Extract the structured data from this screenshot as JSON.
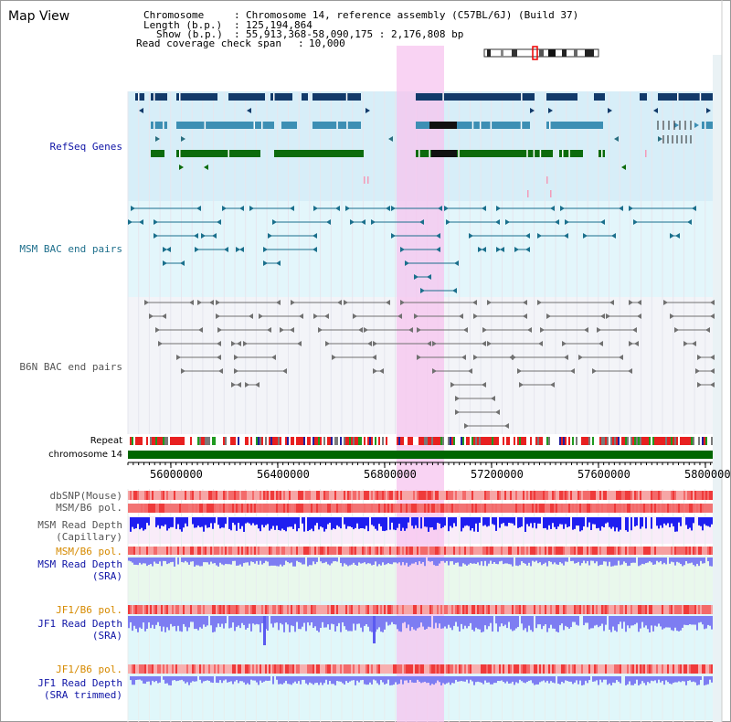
{
  "view_title": "Map View",
  "header": {
    "chromosome_label": "Chromosome",
    "chromosome_value": "Chromosome 14, reference assembly (C57BL/6J) (Build 37)",
    "length_label": "Length (b.p.)",
    "length_value": "125,194,864",
    "show_label": "Show (b.p.)",
    "show_value": "55,913,368-58,090,175 : 2,176,808 bp",
    "coverage_label": "Read coverage check span",
    "coverage_value": "10,000"
  },
  "tracks": {
    "refseq": "RefSeq Genes",
    "msm_bac": "MSM BAC end pairs",
    "b6n_bac": "B6N BAC end pairs",
    "repeat": "Repeat",
    "chromosome": "chromosome 14",
    "dbsnp": "dbSNP(Mouse)",
    "msm_b6_pol": "MSM/B6 pol.",
    "msm_depth_cap_1": "MSM Read Depth",
    "msm_depth_cap_2": "(Capillary)",
    "msm_b6_pol_sra": "MSM/B6 pol.",
    "msm_depth_sra_1": "MSM Read Depth",
    "msm_depth_sra_2": "(SRA)",
    "jf1_b6_pol": "JF1/B6 pol.",
    "jf1_depth_1": "JF1 Read Depth",
    "jf1_depth_2": "(SRA)",
    "jf1_b6_pol_trim": "JF1/B6 pol.",
    "jf1_trim_1": "JF1 Read Depth",
    "jf1_trim_2": "(SRA trimmed)"
  },
  "axis": {
    "ticks": [
      "56000000",
      "56400000",
      "56800000",
      "57200000",
      "57600000",
      "58000000"
    ]
  },
  "colors": {
    "gene_navy": "#123a6a",
    "gene_steel": "#3d8fb4",
    "gene_green": "#0c6b0c",
    "bac_teal": "#1a6f8c",
    "bac_grey": "#707070",
    "highlight": "#f7c4ef",
    "chromosome": "#006600",
    "blue_depth": "#1e1ef0",
    "light_depth": "#7d7df2",
    "pol_red": "#f0404a",
    "label_blue": "#0f14a6",
    "label_teal": "#1e6f8c",
    "label_grey": "#555555",
    "label_orange": "#d68a00"
  }
}
